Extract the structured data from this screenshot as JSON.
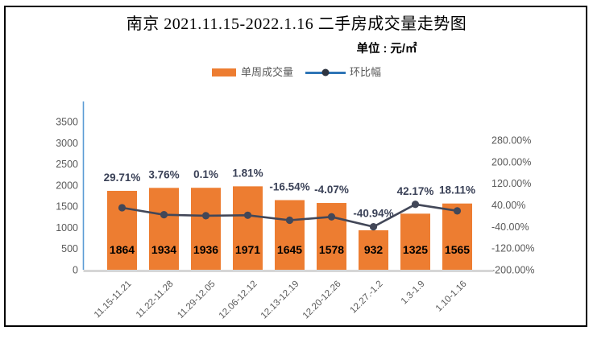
{
  "header": {
    "title": "南京 2021.11.15-2022.1.16 二手房成交量走势图",
    "subtitle": "单位 : 元/㎡"
  },
  "legend": {
    "items": [
      {
        "label": "单周成交量",
        "type": "bar",
        "color": "#ED7D31"
      },
      {
        "label": "环比幅",
        "type": "line",
        "color": "#2E75B6",
        "marker_color": "#2E3440"
      }
    ]
  },
  "chart_data": {
    "type": "bar+line",
    "title": "南京 2021.11.15-2022.1.16 二手房成交量走势图",
    "unit_label": "单位 : 元/㎡",
    "categories": [
      "11.15-11.21",
      "11.22-11.28",
      "11.29-12.05",
      "12.06-12.12",
      "12.13-12.19",
      "12.20-12.26",
      "12.27.-1.2",
      "1.3-1.9",
      "1.10-1.16"
    ],
    "series": [
      {
        "name": "单周成交量",
        "type": "bar",
        "axis": "left",
        "color": "#ED7D31",
        "values": [
          1864,
          1934,
          1936,
          1971,
          1645,
          1578,
          932,
          1325,
          1565
        ],
        "data_labels": [
          "1864",
          "1934",
          "1936",
          "1971",
          "1645",
          "1578",
          "932",
          "1325",
          "1565"
        ]
      },
      {
        "name": "环比幅",
        "type": "line",
        "axis": "right",
        "color": "#424758",
        "values_pct": [
          29.71,
          3.76,
          0.1,
          1.81,
          -16.54,
          -4.07,
          -40.94,
          42.17,
          18.11
        ],
        "data_labels": [
          "29.71%",
          "3.76%",
          "0.1%",
          "1.81%",
          "-16.54%",
          "-4.07%",
          "-40.94%",
          "42.17%",
          "18.11%"
        ]
      }
    ],
    "left_axis": {
      "tick_labels": [
        "3500",
        "3000",
        "2500",
        "2000",
        "1500",
        "1000",
        "500",
        "0"
      ],
      "range": [
        0,
        3500
      ],
      "color": "#5B9BD5"
    },
    "right_axis": {
      "tick_labels": [
        "280.00%",
        "200.00%",
        "120.00%",
        "40.00%",
        "-40.00%",
        "-120.00%",
        "-200.00%"
      ],
      "range": [
        -200,
        280
      ]
    },
    "grid": "off",
    "legend_position": "top",
    "styles": {
      "bar_color": "#ED7D31",
      "line_color": "#424758",
      "axis_line_color": "#5B9BD5",
      "baseline_color": "#D6D6D6",
      "tick_label_color": "#595959",
      "bar_label_color": "#000000",
      "pct_label_color": "#3A4157"
    }
  }
}
